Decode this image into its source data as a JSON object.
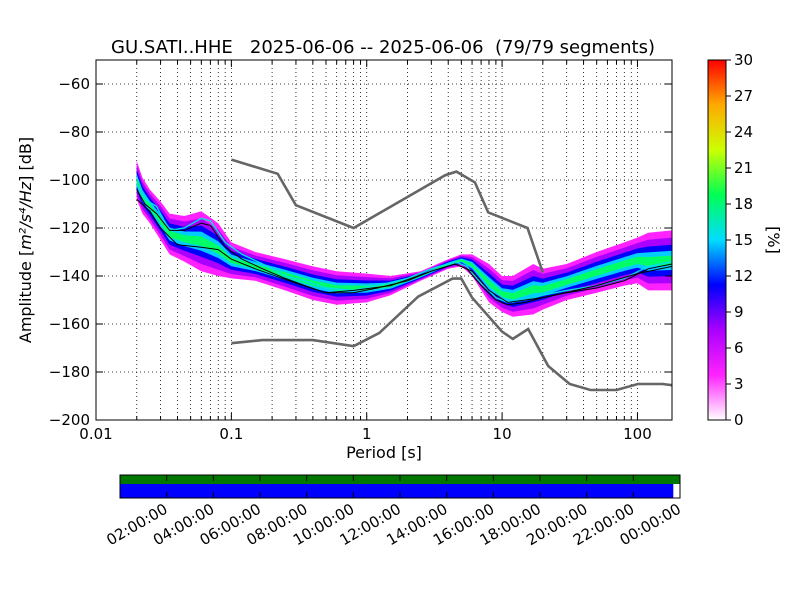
{
  "title": "GU.SATI..HHE   2025-06-06 -- 2025-06-06  (79/79 segments)",
  "chart_data": {
    "type": "heatmap",
    "title": "GU.SATI..HHE   2025-06-06 -- 2025-06-06  (79/79 segments)",
    "xlabel": "Period [s]",
    "ylabel_prefix": "Amplitude [",
    "ylabel_unit": "m²/s⁴/Hz",
    "ylabel_suffix": "] [dB]",
    "xscale": "log",
    "xlim": [
      0.01,
      180
    ],
    "ylim": [
      -200,
      -50
    ],
    "x_ticks": [
      {
        "value": 0.01,
        "label": "0.01"
      },
      {
        "value": 0.1,
        "label": "0.1"
      },
      {
        "value": 1,
        "label": "1"
      },
      {
        "value": 10,
        "label": "10"
      },
      {
        "value": 100,
        "label": "100"
      }
    ],
    "y_ticks": [
      {
        "value": -60,
        "label": "−60"
      },
      {
        "value": -80,
        "label": "−80"
      },
      {
        "value": -100,
        "label": "−100"
      },
      {
        "value": -120,
        "label": "−120"
      },
      {
        "value": -140,
        "label": "−140"
      },
      {
        "value": -160,
        "label": "−160"
      },
      {
        "value": -180,
        "label": "−180"
      },
      {
        "value": -200,
        "label": "−200"
      }
    ],
    "grid": true,
    "colorbar": {
      "label": "[%]",
      "range": [
        0,
        30
      ],
      "ticks": [
        "0",
        "3",
        "6",
        "9",
        "12",
        "15",
        "18",
        "21",
        "24",
        "27",
        "30"
      ],
      "colormap": [
        "#ffffff",
        "#ff22ff",
        "#aa00ff",
        "#0000ff",
        "#00ddff",
        "#00ff55",
        "#ccff00",
        "#ffaa00",
        "#ff0000"
      ]
    },
    "noise_model_high": {
      "x": [
        0.1,
        0.22,
        0.3,
        0.8,
        3.8,
        4.6,
        6.3,
        7.9,
        15.4,
        20
      ],
      "y": [
        -91.5,
        -97.4,
        -110.5,
        -120,
        -98,
        -96.5,
        -101,
        -113.5,
        -120,
        -138.5
      ]
    },
    "noise_model_low": {
      "x": [
        0.1,
        0.17,
        0.4,
        0.8,
        1.24,
        2.4,
        4.3,
        5,
        6,
        10,
        12,
        15.6,
        21.9,
        31.6,
        45,
        70,
        101,
        154,
        180
      ],
      "y": [
        -168,
        -166.7,
        -166.7,
        -169.2,
        -163.7,
        -148.6,
        -141.1,
        -141.1,
        -149,
        -163.2,
        -166.2,
        -162.1,
        -177.5,
        -185,
        -187.5,
        -187.5,
        -185,
        -185,
        -185.5
      ]
    },
    "mean_curve": {
      "x": [
        0.02,
        0.023,
        0.028,
        0.035,
        0.045,
        0.06,
        0.07,
        0.09,
        0.12,
        0.17,
        0.25,
        0.35,
        0.5,
        0.8,
        1.2,
        2,
        3,
        4.5,
        5.5,
        7,
        9,
        11,
        15,
        20,
        30,
        50,
        80,
        120,
        180
      ],
      "y": [
        -104,
        -110,
        -114,
        -121,
        -121,
        -118,
        -119,
        -128,
        -133,
        -137,
        -141,
        -144,
        -147,
        -147,
        -145,
        -142,
        -138,
        -135,
        -137,
        -144,
        -150,
        -152,
        -151,
        -149,
        -147,
        -145,
        -142,
        -137,
        -135
      ]
    },
    "mode_curve": {
      "x": [
        0.02,
        0.023,
        0.028,
        0.035,
        0.045,
        0.06,
        0.07,
        0.09,
        0.12,
        0.17,
        0.25,
        0.35,
        0.5,
        0.8,
        1.2,
        2,
        3,
        4.5,
        5.5,
        7,
        9,
        11,
        15,
        20,
        30,
        50,
        80,
        120,
        180
      ],
      "y": [
        -102,
        -108,
        -111,
        -121,
        -120,
        -116,
        -117,
        -126,
        -131,
        -135,
        -140,
        -142,
        -145,
        -146,
        -144,
        -141,
        -137,
        -134,
        -136,
        -143,
        -149,
        -151,
        -150,
        -148,
        -146,
        -144,
        -141,
        -136,
        -134
      ]
    },
    "median_curve": {
      "x": [
        0.02,
        0.025,
        0.03,
        0.04,
        0.06,
        0.08,
        0.1,
        0.15,
        0.3,
        0.5,
        0.8,
        1.5,
        3,
        4.5,
        6,
        8,
        11,
        20,
        50,
        100,
        180
      ],
      "y": [
        -108,
        -113,
        -120,
        -127,
        -128,
        -129,
        -133,
        -137,
        -143,
        -147,
        -146,
        -144,
        -138,
        -135,
        -138,
        -146,
        -151,
        -149,
        -144,
        -139,
        -136
      ]
    },
    "density_band": {
      "x": [
        0.02,
        0.022,
        0.025,
        0.03,
        0.035,
        0.045,
        0.06,
        0.08,
        0.1,
        0.15,
        0.25,
        0.4,
        0.6,
        1,
        1.5,
        2.5,
        4,
        5,
        6,
        8,
        10,
        12,
        17,
        20,
        30,
        50,
        80,
        100,
        120,
        180
      ],
      "upper": [
        -92,
        -99,
        -104,
        -109,
        -114,
        -115,
        -113,
        -118,
        -126,
        -130,
        -133,
        -136,
        -138,
        -139,
        -140,
        -138,
        -133,
        -131,
        -131,
        -135,
        -140,
        -140,
        -135,
        -137,
        -135,
        -130,
        -126,
        -124,
        -122,
        -121
      ],
      "lower": [
        -108,
        -114,
        -118,
        -125,
        -131,
        -134,
        -138,
        -140,
        -141,
        -142,
        -146,
        -150,
        -152,
        -151,
        -148,
        -142,
        -137,
        -136,
        -140,
        -151,
        -155,
        -157,
        -156,
        -154,
        -150,
        -147,
        -144,
        -143,
        -146,
        -146
      ]
    },
    "time_bar": {
      "tick_labels": [
        "02:00:00",
        "04:00:00",
        "06:00:00",
        "08:00:00",
        "10:00:00",
        "12:00:00",
        "14:00:00",
        "16:00:00",
        "18:00:00",
        "20:00:00",
        "22:00:00",
        "00:00:00"
      ],
      "data_coverage_color": "#007700",
      "psd_coverage_color": "#0000ff",
      "psd_coverage_fraction": 0.988
    }
  }
}
